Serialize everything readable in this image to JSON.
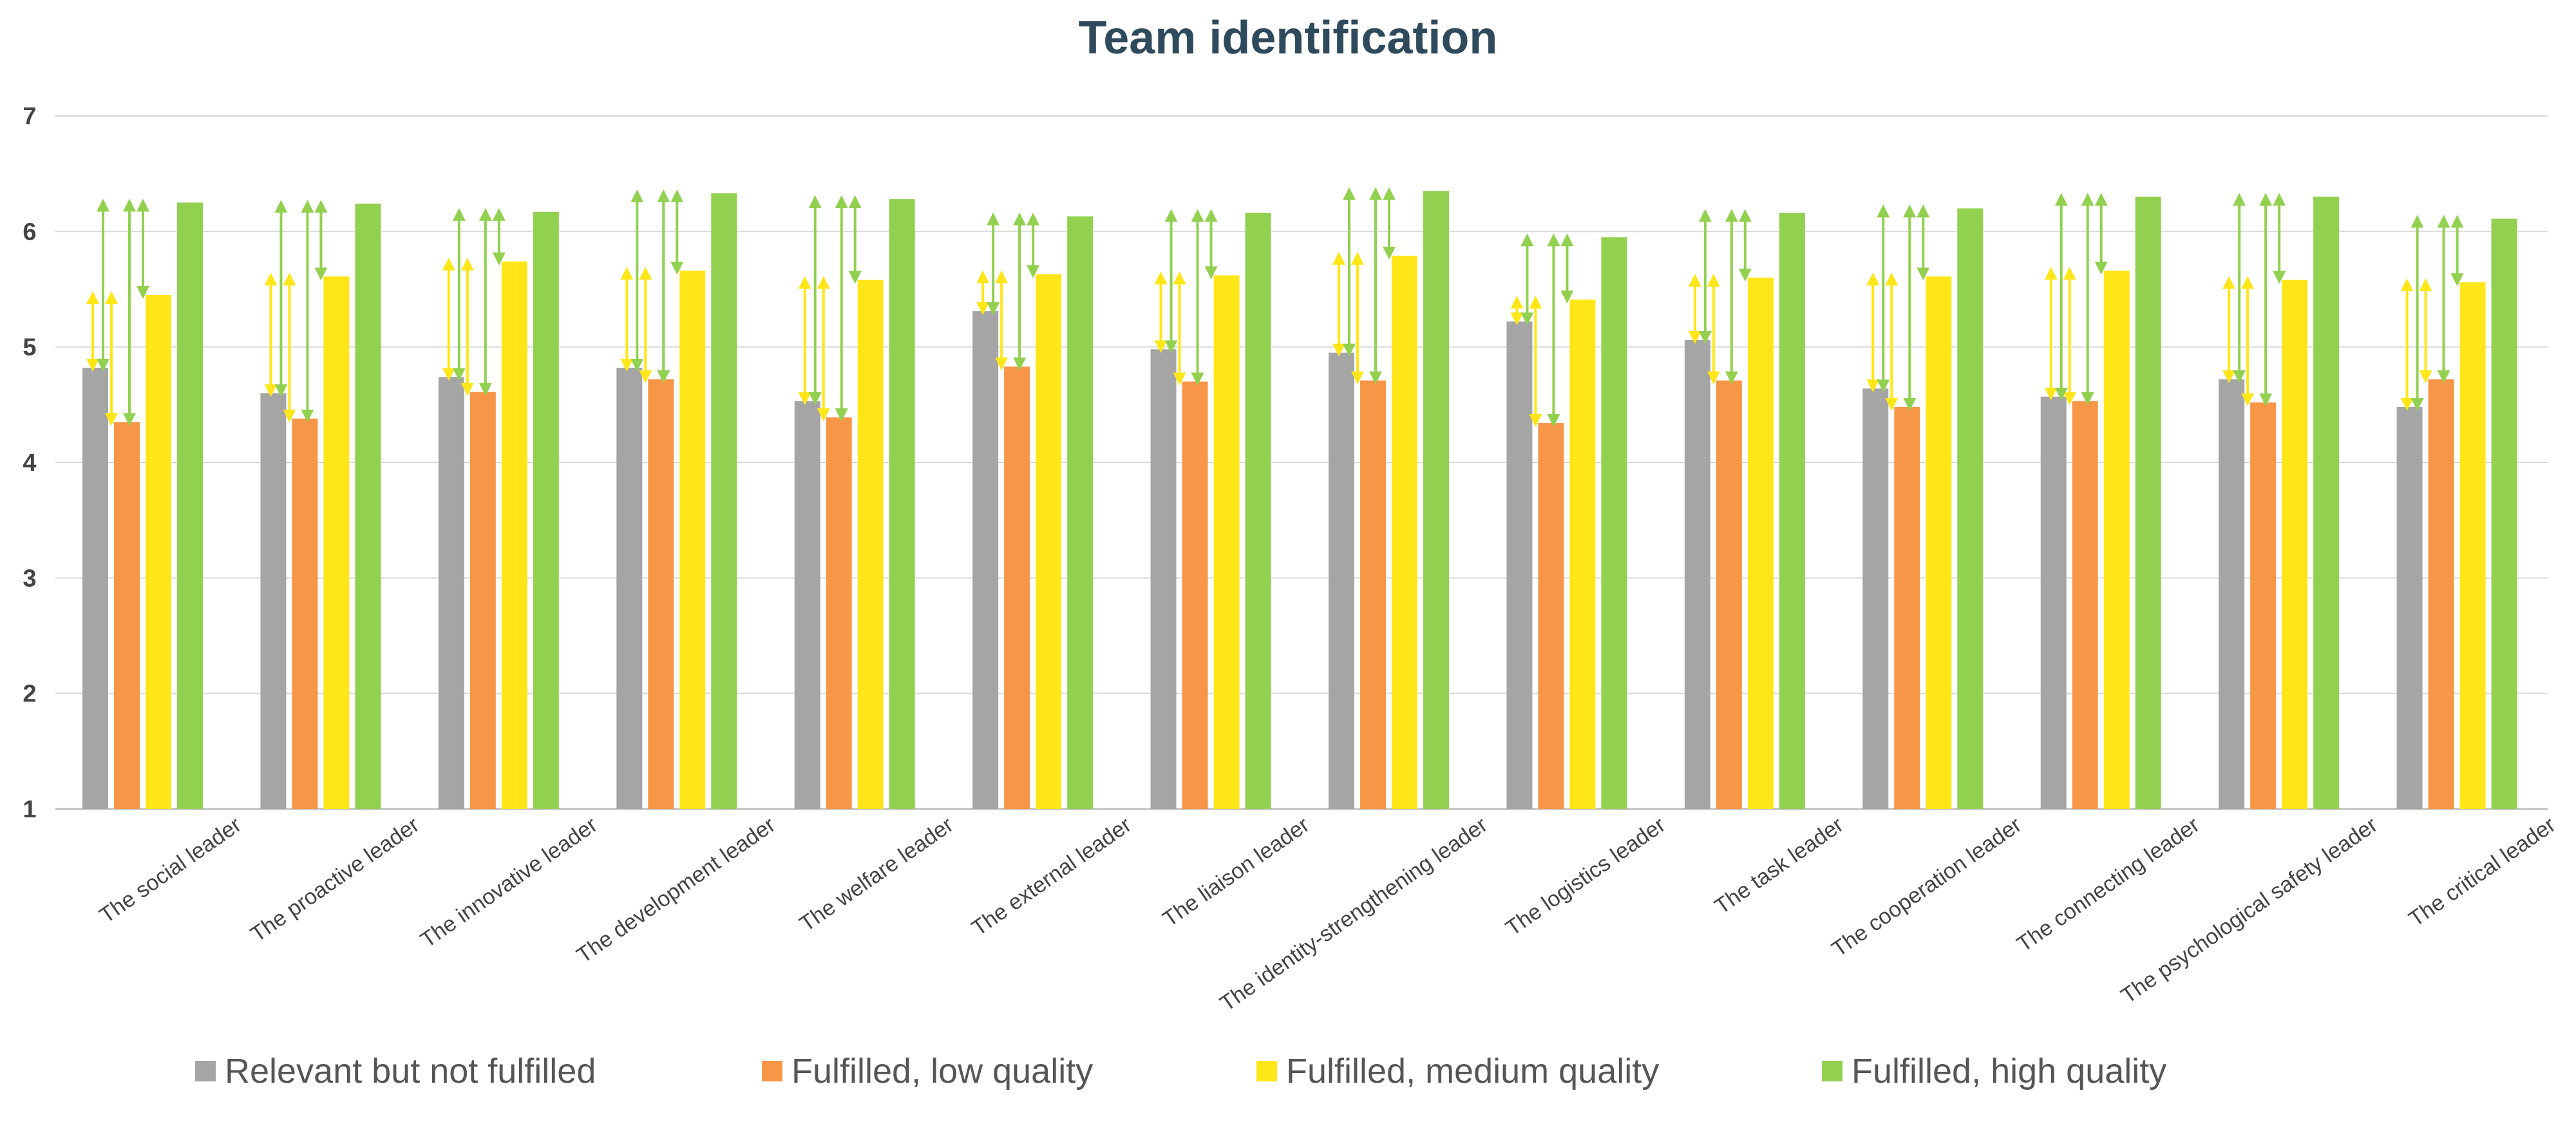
{
  "chart_data": {
    "type": "bar",
    "title": "Team identification",
    "ylim": [
      1,
      7
    ],
    "yticks": [
      "1",
      "2",
      "3",
      "4",
      "5",
      "6",
      "7"
    ],
    "grid": true,
    "legend_position": "bottom",
    "categories": [
      "The social leader",
      "The proactive leader",
      "The innovative leader",
      "The development leader",
      "The welfare leader",
      "The external leader",
      "The liaison leader",
      "The identity-strengthening leader",
      "The logistics leader",
      "The task leader",
      "The cooperation leader",
      "The connecting leader",
      "The psychological safety leader",
      "The critical leader"
    ],
    "series": [
      {
        "name": "Relevant but not fulfilled",
        "color": "#a5a5a5",
        "values": [
          4.82,
          4.6,
          4.74,
          4.82,
          4.53,
          5.31,
          4.98,
          4.95,
          5.22,
          5.06,
          4.64,
          4.57,
          4.72,
          4.48
        ]
      },
      {
        "name": "Fulfilled, low quality",
        "color": "#f79646",
        "values": [
          4.35,
          4.38,
          4.61,
          4.72,
          4.39,
          4.83,
          4.7,
          4.71,
          4.34,
          4.71,
          4.48,
          4.53,
          4.52,
          4.72
        ]
      },
      {
        "name": "Fulfilled, medium quality",
        "color": "#ffe619",
        "values": [
          5.45,
          5.61,
          5.74,
          5.66,
          5.58,
          5.63,
          5.62,
          5.79,
          5.41,
          5.6,
          5.61,
          5.66,
          5.58,
          5.56
        ]
      },
      {
        "name": "Fulfilled, high quality",
        "color": "#92d050",
        "values": [
          6.25,
          6.24,
          6.17,
          6.33,
          6.28,
          6.13,
          6.16,
          6.35,
          5.95,
          6.16,
          6.2,
          6.3,
          6.3,
          6.11
        ]
      }
    ],
    "annotations": "double-headed arrows mark significant differences between response groups"
  }
}
